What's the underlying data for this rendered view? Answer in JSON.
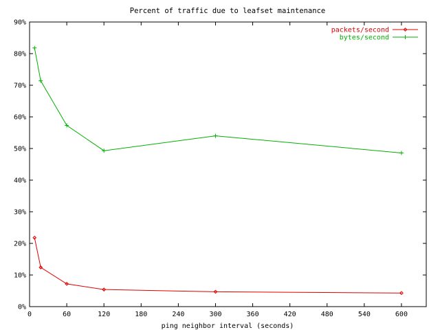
{
  "chart_data": {
    "type": "line",
    "title": "Percent of traffic due to leafset maintenance",
    "xlabel": "ping neighbor interval (seconds)",
    "ylabel": "",
    "xlim": [
      0,
      640
    ],
    "ylim": [
      0,
      90
    ],
    "xticks": [
      0,
      60,
      120,
      180,
      240,
      300,
      360,
      420,
      480,
      540,
      600
    ],
    "yticks": [
      0,
      10,
      20,
      30,
      40,
      50,
      60,
      70,
      80,
      90
    ],
    "ytick_labels": [
      "0%",
      "10%",
      "20%",
      "30%",
      "40%",
      "50%",
      "60%",
      "70%",
      "80%",
      "90%"
    ],
    "grid": false,
    "legend_position": "top-right",
    "series": [
      {
        "name": "packets/second",
        "color": "#dd0000",
        "marker": "diamond",
        "x": [
          8,
          18,
          60,
          120,
          300,
          600
        ],
        "y": [
          21.8,
          12.4,
          7.2,
          5.4,
          4.7,
          4.3
        ]
      },
      {
        "name": "bytes/second",
        "color": "#00b000",
        "marker": "plus",
        "x": [
          8,
          18,
          60,
          120,
          300,
          600
        ],
        "y": [
          81.8,
          71.4,
          57.3,
          49.3,
          54.0,
          48.6
        ]
      }
    ]
  }
}
